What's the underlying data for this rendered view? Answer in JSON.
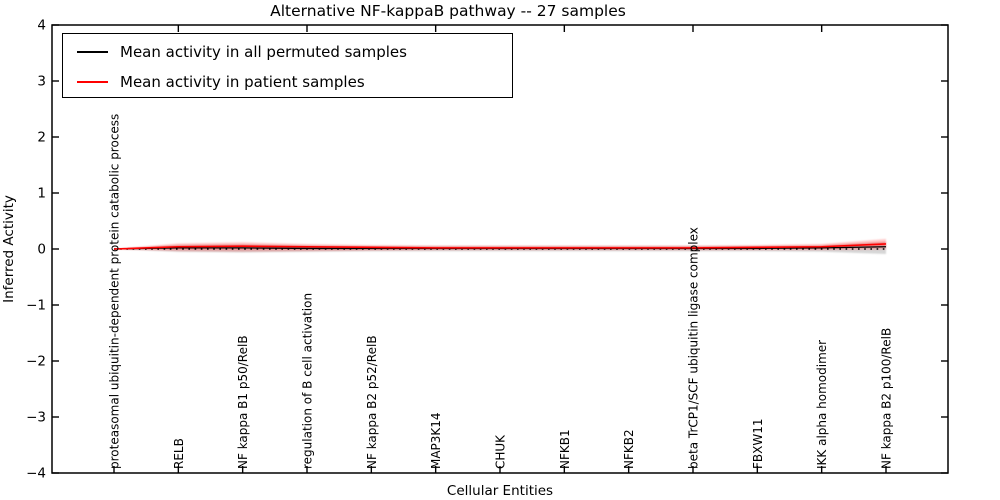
{
  "title": "Alternative NF-kappaB pathway -- 27 samples",
  "legend": {
    "entries": [
      {
        "label": "Mean activity in all permuted samples",
        "color": "#000000"
      },
      {
        "label": "Mean activity in patient samples",
        "color": "#ff0000"
      }
    ]
  },
  "chart_data": {
    "type": "line",
    "title": "Alternative NF-kappaB pathway -- 27 samples",
    "xlabel": "Cellular Entities",
    "ylabel": "Inferred Activity",
    "ylim": [
      -4,
      4
    ],
    "yticks": [
      4,
      3,
      2,
      1,
      0,
      -1,
      -2,
      -3,
      -4
    ],
    "yticklabels": [
      "4",
      "3",
      "2",
      "1",
      "0",
      "−1",
      "−2",
      "−3",
      "−4"
    ],
    "grid": false,
    "legend_position": "upper left",
    "zero_line": {
      "y": 0,
      "style": "dotted",
      "color": "#000000"
    },
    "categories": [
      "proteasomal ubiquitin-dependent protein catabolic process",
      "RELB",
      "NF kappa B1 p50/RelB",
      "regulation of B cell activation",
      "NF kappa B2 p52/RelB",
      "MAP3K14",
      "CHUK",
      "NFKB1",
      "NFKB2",
      "beta TrCP1/SCF ubiquitin ligase complex",
      "FBXW11",
      "IKK alpha homodimer",
      "NF kappa B2 p100/RelB"
    ],
    "series": [
      {
        "name": "Mean activity in all permuted samples",
        "color": "#000000",
        "band_color": "rgba(0,0,0,0.16)",
        "values": [
          0,
          0.02,
          0.02,
          0.01,
          0.01,
          0.01,
          0.01,
          0.01,
          0.01,
          0.01,
          0.01,
          0.02,
          0.04
        ],
        "band_upper": [
          0,
          0.07,
          0.08,
          0.06,
          0.05,
          0.05,
          0.05,
          0.05,
          0.05,
          0.05,
          0.05,
          0.06,
          0.12
        ],
        "band_lower": [
          0,
          -0.05,
          -0.06,
          -0.05,
          -0.04,
          -0.04,
          -0.04,
          -0.04,
          -0.04,
          -0.04,
          -0.04,
          -0.05,
          -0.09
        ]
      },
      {
        "name": "Mean activity in patient samples",
        "color": "#ff0000",
        "band_color": "rgba(255,0,0,0.20)",
        "values": [
          0,
          0.04,
          0.05,
          0.04,
          0.03,
          0.02,
          0.02,
          0.02,
          0.02,
          0.02,
          0.03,
          0.04,
          0.09
        ],
        "band_upper": [
          0,
          0.1,
          0.12,
          0.09,
          0.07,
          0.06,
          0.06,
          0.06,
          0.06,
          0.06,
          0.07,
          0.09,
          0.18
        ],
        "band_lower": [
          0,
          -0.04,
          -0.05,
          -0.04,
          -0.03,
          -0.02,
          -0.02,
          -0.02,
          -0.02,
          -0.02,
          -0.02,
          -0.02,
          -0.01
        ]
      }
    ]
  }
}
